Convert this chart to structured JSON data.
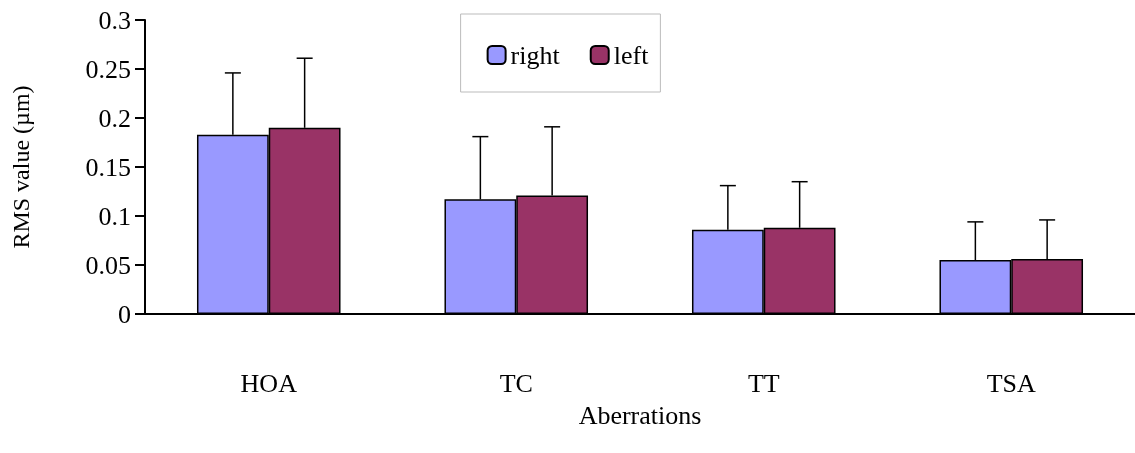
{
  "chart_data": {
    "type": "bar",
    "xlabel": "Aberrations",
    "ylabel": "RMS value (µm)",
    "categories": [
      "HOA",
      "TC",
      "TT",
      "TSA"
    ],
    "series": [
      {
        "name": "right",
        "color": "#9999ff",
        "values": [
          0.183,
          0.117,
          0.086,
          0.055
        ],
        "errors": [
          [
            0.183,
            0.246
          ],
          [
            0.117,
            0.181
          ],
          [
            0.086,
            0.131
          ],
          [
            0.055,
            0.094
          ]
        ]
      },
      {
        "name": "left",
        "color": "#993366",
        "values": [
          0.19,
          0.121,
          0.088,
          0.056
        ],
        "errors": [
          [
            0.19,
            0.261
          ],
          [
            0.121,
            0.191
          ],
          [
            0.088,
            0.135
          ],
          [
            0.056,
            0.096
          ]
        ]
      }
    ],
    "ylim": [
      0,
      0.3
    ],
    "yticks": [
      0,
      0.05,
      0.1,
      0.15,
      0.2,
      0.25,
      0.3
    ],
    "grid": false,
    "legend": "top"
  }
}
